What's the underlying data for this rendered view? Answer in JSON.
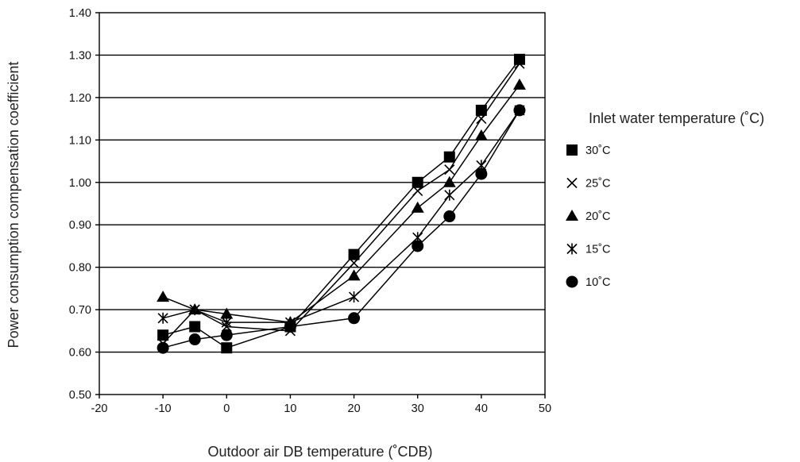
{
  "chart_data": {
    "type": "line",
    "xlabel": "Outdoor air DB temperature (˚CDB)",
    "ylabel": "Power consumption compensation coefficient",
    "xlim": [
      -20,
      50
    ],
    "ylim": [
      0.5,
      1.4
    ],
    "x_ticks": [
      "-20",
      "-10",
      "0",
      "10",
      "20",
      "30",
      "40",
      "50"
    ],
    "y_ticks": [
      "0.50",
      "0.60",
      "0.70",
      "0.80",
      "0.90",
      "1.00",
      "1.10",
      "1.20",
      "1.30",
      "1.40"
    ],
    "grid": "horizontal",
    "legend_title": "Inlet water temperature (˚C)",
    "legend_position": "right",
    "series": [
      {
        "name": "30˚C",
        "marker": "square",
        "x": [
          -10,
          -5,
          0,
          10,
          20,
          30,
          35,
          40,
          46
        ],
        "y": [
          0.64,
          0.66,
          0.61,
          0.66,
          0.83,
          1.0,
          1.06,
          1.17,
          1.29
        ]
      },
      {
        "name": "25˚C",
        "marker": "x",
        "x": [
          -10,
          -5,
          0,
          10,
          20,
          30,
          35,
          40,
          46
        ],
        "y": [
          0.62,
          0.7,
          0.66,
          0.65,
          0.81,
          0.98,
          1.03,
          1.15,
          1.28
        ]
      },
      {
        "name": "20˚C",
        "marker": "triangle",
        "x": [
          -10,
          -5,
          0,
          10,
          20,
          30,
          35,
          40,
          46
        ],
        "y": [
          0.73,
          0.7,
          0.69,
          0.67,
          0.78,
          0.94,
          1.0,
          1.11,
          1.23
        ]
      },
      {
        "name": "15˚C",
        "marker": "asterisk",
        "x": [
          -10,
          -5,
          0,
          10,
          20,
          30,
          35,
          40,
          46
        ],
        "y": [
          0.68,
          0.7,
          0.67,
          0.67,
          0.73,
          0.87,
          0.97,
          1.04,
          1.17
        ]
      },
      {
        "name": "10˚C",
        "marker": "circle",
        "x": [
          -10,
          -5,
          0,
          10,
          20,
          30,
          35,
          40,
          46
        ],
        "y": [
          0.61,
          0.63,
          0.64,
          0.66,
          0.68,
          0.85,
          0.92,
          1.02,
          1.17
        ]
      }
    ]
  }
}
